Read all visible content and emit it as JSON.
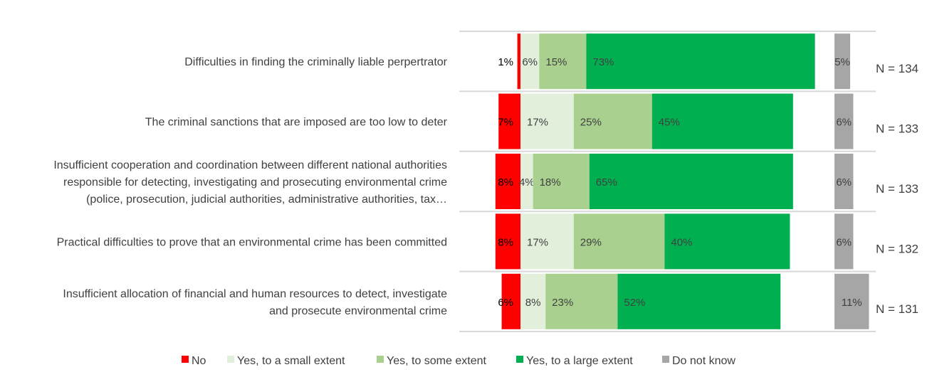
{
  "chart_data": {
    "type": "bar",
    "stacked": true,
    "orientation": "horizontal",
    "categories": [
      [
        "Difficulties in finding the criminally liable perpertrator"
      ],
      [
        "The criminal sanctions that are imposed are too low to deter"
      ],
      [
        "Insufficient cooperation and coordination between different national authorities",
        "responsible for detecting, investigating and prosecuting environmental crime",
        "(police, prosecution, judicial authorities, administrative authorities, tax…"
      ],
      [
        "Practical difficulties to prove that an environmental crime has been committed"
      ],
      [
        "Insufficient allocation of financial and human resources to detect, investigate",
        "and prosecute environmental crime"
      ]
    ],
    "series": [
      {
        "name": "No",
        "color": "#FF0000",
        "values": [
          1,
          7,
          8,
          8,
          6
        ]
      },
      {
        "name": "Yes, to a small extent",
        "color": "#E2EFDA",
        "values": [
          6,
          17,
          4,
          17,
          8
        ]
      },
      {
        "name": "Yes, to some extent",
        "color": "#A9D08E",
        "values": [
          15,
          25,
          18,
          29,
          23
        ]
      },
      {
        "name": "Yes, to a large extent",
        "color": "#00B050",
        "values": [
          73,
          45,
          65,
          40,
          52
        ]
      },
      {
        "name": "Do not know",
        "color": "#A6A6A6",
        "values": [
          5,
          6,
          6,
          6,
          11
        ]
      }
    ],
    "n_labels": [
      "N = 134",
      "N = 133",
      "N = 133",
      "N = 132",
      "N = 131"
    ],
    "value_suffix": "%",
    "legend_position": "bottom"
  }
}
